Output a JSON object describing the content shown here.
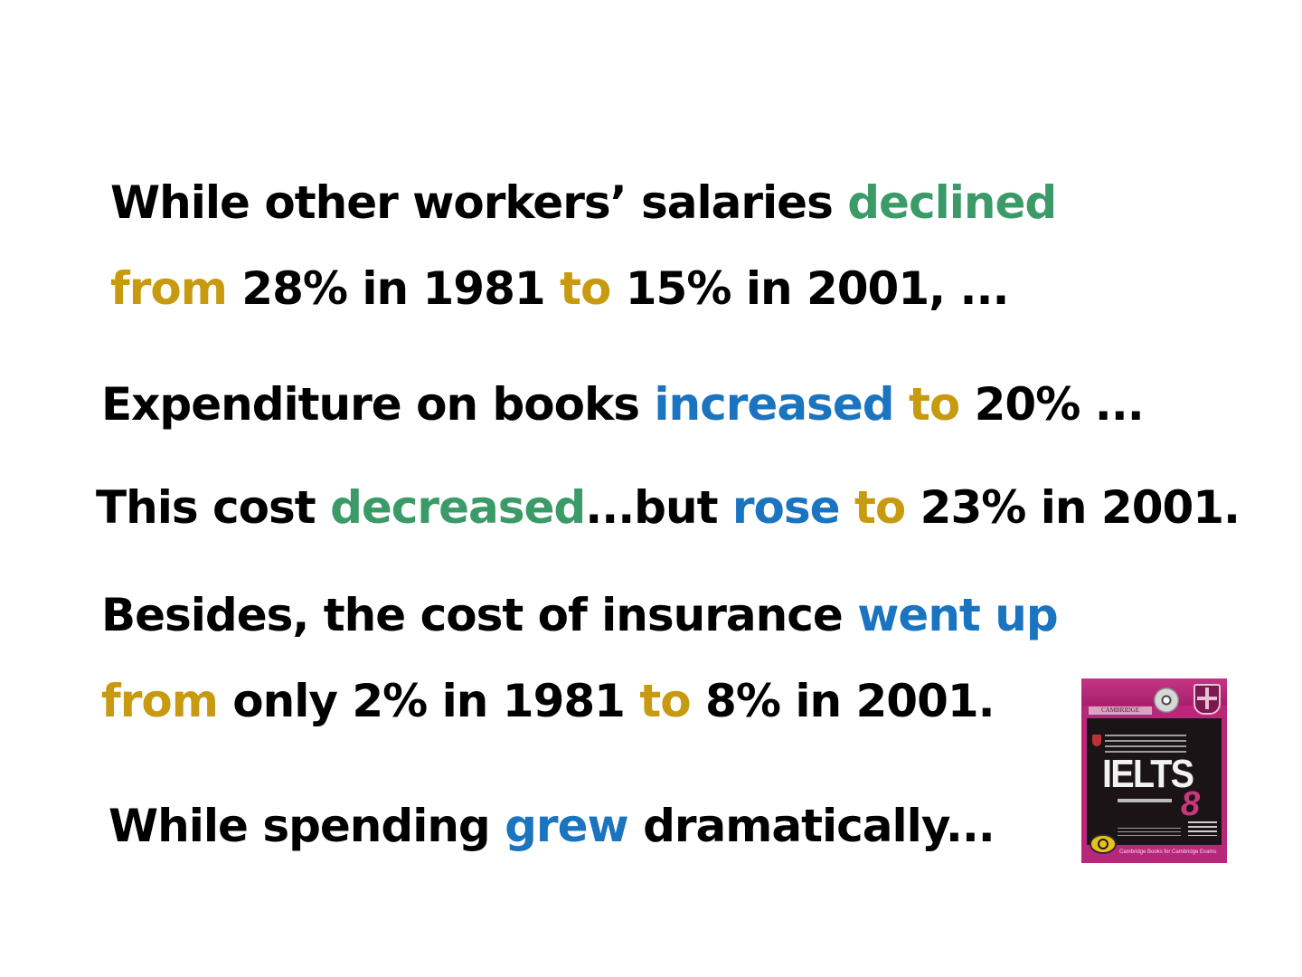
{
  "lines": [
    {
      "segments": [
        {
          "text": "While other workers’ salaries ",
          "style": "black"
        },
        {
          "text": "declined",
          "style": "green"
        }
      ]
    },
    {
      "segments": [
        {
          "text": "from",
          "style": "gold"
        },
        {
          "text": " 28% in 1981 ",
          "style": "black"
        },
        {
          "text": "to",
          "style": "gold"
        },
        {
          "text": " 15% in 2001, ...",
          "style": "black"
        }
      ]
    },
    {
      "segments": [
        {
          "text": "Expenditure  on books ",
          "style": "black"
        },
        {
          "text": "increased",
          "style": "blue"
        },
        {
          "text": " ",
          "style": "black"
        },
        {
          "text": "to",
          "style": "gold"
        },
        {
          "text": " 20% ...",
          "style": "black"
        }
      ]
    },
    {
      "segments": [
        {
          "text": "This cost ",
          "style": "black"
        },
        {
          "text": "decreased",
          "style": "green"
        },
        {
          "text": "...but ",
          "style": "black"
        },
        {
          "text": "rose",
          "style": "blue"
        },
        {
          "text": " ",
          "style": "black"
        },
        {
          "text": "to",
          "style": "gold"
        },
        {
          "text": " 23% in 2001.",
          "style": "black"
        }
      ]
    },
    {
      "segments": [
        {
          "text": "Besides, the cost of insurance ",
          "style": "black"
        },
        {
          "text": "went up",
          "style": "blue"
        }
      ]
    },
    {
      "segments": [
        {
          "text": "from",
          "style": "gold"
        },
        {
          "text": " only 2% in 1981 ",
          "style": "black"
        },
        {
          "text": "to",
          "style": "gold"
        },
        {
          "text": " 8% in 2001.",
          "style": "black"
        }
      ]
    },
    {
      "segments": [
        {
          "text": "While spending ",
          "style": "black"
        },
        {
          "text": "grew",
          "style": "blue"
        },
        {
          "text": " dramatically...",
          "style": "black"
        }
      ]
    }
  ],
  "book_cover": {
    "publisher": "CAMBRIDGE",
    "brand": "IELTS",
    "volume": "8",
    "footer": "Cambridge Books for Cambridge Exams"
  },
  "colors": {
    "green": "#3a9a68",
    "gold": "#c89a10",
    "blue": "#1a74c0",
    "black": "#000000",
    "book_magenta": "#b8277a"
  }
}
